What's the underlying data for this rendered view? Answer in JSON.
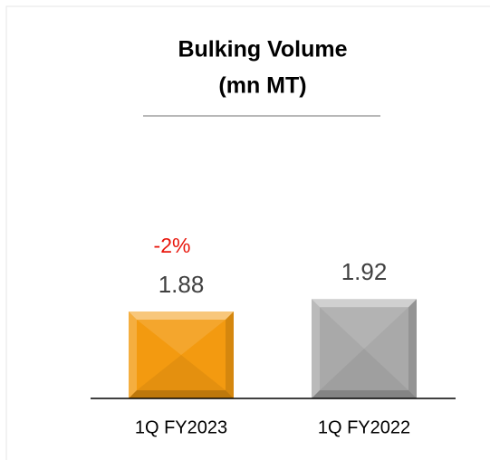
{
  "chart_data": {
    "type": "bar",
    "title": [
      "Bulking Volume",
      "(mn MT)"
    ],
    "annotation": "-2%",
    "categories": [
      "1Q FY2023",
      "1Q FY2022"
    ],
    "values": [
      1.88,
      1.92
    ],
    "colors": [
      "#f39a10",
      "#a9a9a9"
    ],
    "ylim": [
      1.6,
      2.3
    ]
  }
}
